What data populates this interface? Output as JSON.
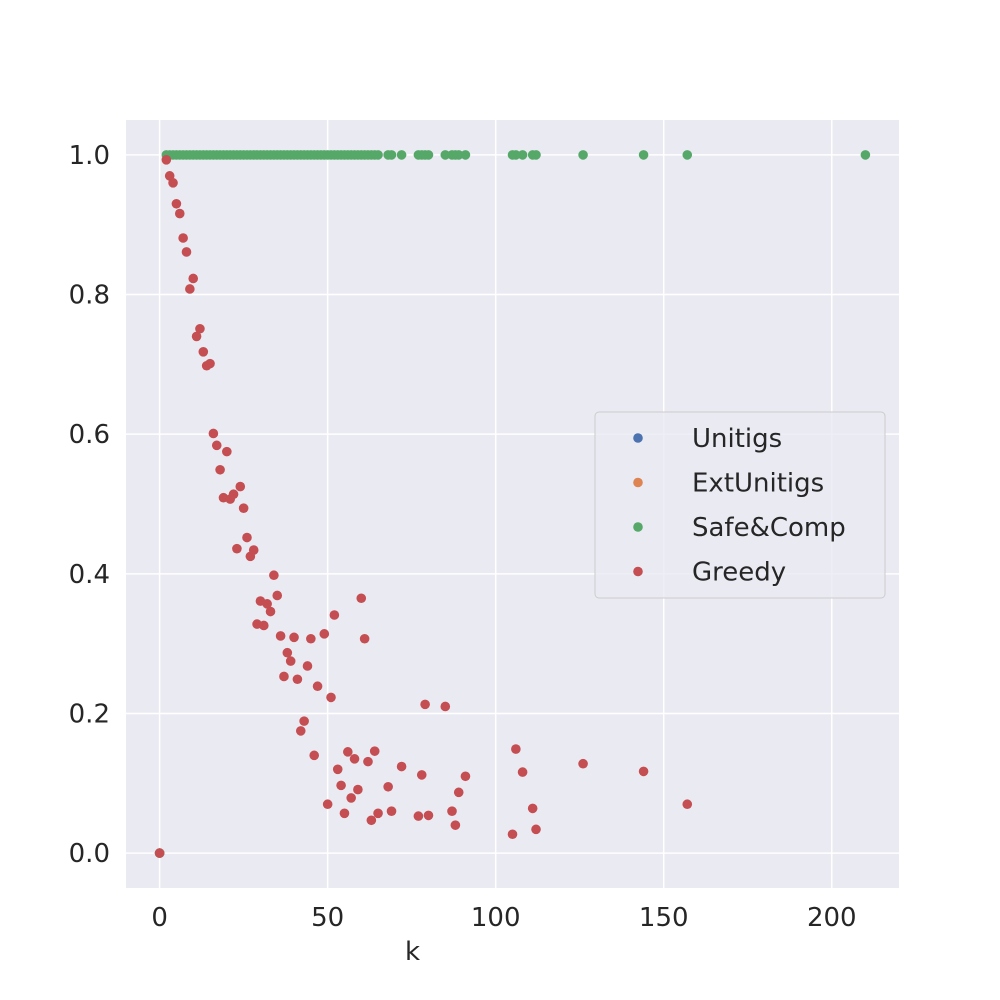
{
  "chart_data": {
    "type": "scatter",
    "xlabel": "k",
    "ylabel": "",
    "xlim": [
      -10,
      220
    ],
    "ylim": [
      -0.05,
      1.05
    ],
    "xticks": [
      0,
      50,
      100,
      150,
      200
    ],
    "xtick_labels": [
      "0",
      "50",
      "100",
      "150",
      "200"
    ],
    "yticks": [
      0.0,
      0.2,
      0.4,
      0.6,
      0.8,
      1.0
    ],
    "ytick_labels": [
      "0.0",
      "0.2",
      "0.4",
      "0.6",
      "0.8",
      "1.0"
    ],
    "grid": true,
    "legend_position": "center-right",
    "colors": {
      "background": "#eaeaf2",
      "grid": "#ffffff",
      "Unitigs": "#4c72b0",
      "ExtUnitigs": "#dd8452",
      "Safe&Comp": "#55a868",
      "Greedy": "#c44e52"
    },
    "series": [
      {
        "name": "Unitigs",
        "points": [
          [
            0,
            0
          ]
        ]
      },
      {
        "name": "ExtUnitigs",
        "points": [
          [
            0,
            0
          ]
        ]
      },
      {
        "name": "Safe&Comp",
        "points": [
          [
            0,
            0
          ],
          [
            2,
            1
          ],
          [
            3,
            1
          ],
          [
            4,
            1
          ],
          [
            5,
            1
          ],
          [
            6,
            1
          ],
          [
            7,
            1
          ],
          [
            8,
            1
          ],
          [
            9,
            1
          ],
          [
            10,
            1
          ],
          [
            11,
            1
          ],
          [
            12,
            1
          ],
          [
            13,
            1
          ],
          [
            14,
            1
          ],
          [
            15,
            1
          ],
          [
            16,
            1
          ],
          [
            17,
            1
          ],
          [
            18,
            1
          ],
          [
            19,
            1
          ],
          [
            20,
            1
          ],
          [
            21,
            1
          ],
          [
            22,
            1
          ],
          [
            23,
            1
          ],
          [
            24,
            1
          ],
          [
            25,
            1
          ],
          [
            26,
            1
          ],
          [
            27,
            1
          ],
          [
            28,
            1
          ],
          [
            29,
            1
          ],
          [
            30,
            1
          ],
          [
            31,
            1
          ],
          [
            32,
            1
          ],
          [
            33,
            1
          ],
          [
            34,
            1
          ],
          [
            35,
            1
          ],
          [
            36,
            1
          ],
          [
            37,
            1
          ],
          [
            38,
            1
          ],
          [
            39,
            1
          ],
          [
            40,
            1
          ],
          [
            41,
            1
          ],
          [
            42,
            1
          ],
          [
            43,
            1
          ],
          [
            44,
            1
          ],
          [
            45,
            1
          ],
          [
            46,
            1
          ],
          [
            47,
            1
          ],
          [
            48,
            1
          ],
          [
            49,
            1
          ],
          [
            50,
            1
          ],
          [
            51,
            1
          ],
          [
            52,
            1
          ],
          [
            53,
            1
          ],
          [
            54,
            1
          ],
          [
            55,
            1
          ],
          [
            56,
            1
          ],
          [
            57,
            1
          ],
          [
            58,
            1
          ],
          [
            59,
            1
          ],
          [
            60,
            1
          ],
          [
            61,
            1
          ],
          [
            62,
            1
          ],
          [
            63,
            1
          ],
          [
            64,
            1
          ],
          [
            65,
            1
          ],
          [
            68,
            1
          ],
          [
            69,
            1
          ],
          [
            72,
            1
          ],
          [
            77,
            1
          ],
          [
            78,
            1
          ],
          [
            79,
            1
          ],
          [
            80,
            1
          ],
          [
            85,
            1
          ],
          [
            87,
            1
          ],
          [
            88,
            1
          ],
          [
            89,
            1
          ],
          [
            91,
            1
          ],
          [
            105,
            1
          ],
          [
            106,
            1
          ],
          [
            108,
            1
          ],
          [
            111,
            1
          ],
          [
            112,
            1
          ],
          [
            126,
            1
          ],
          [
            144,
            1
          ],
          [
            157,
            1
          ],
          [
            210,
            1
          ]
        ]
      },
      {
        "name": "Greedy",
        "points": [
          [
            0,
            0.0
          ],
          [
            2,
            0.993
          ],
          [
            3,
            0.97
          ],
          [
            4,
            0.96
          ],
          [
            5,
            0.93
          ],
          [
            6,
            0.916
          ],
          [
            7,
            0.881
          ],
          [
            8,
            0.861
          ],
          [
            9,
            0.808
          ],
          [
            10,
            0.823
          ],
          [
            11,
            0.74
          ],
          [
            12,
            0.751
          ],
          [
            13,
            0.718
          ],
          [
            14,
            0.698
          ],
          [
            15,
            0.701
          ],
          [
            16,
            0.601
          ],
          [
            17,
            0.584
          ],
          [
            18,
            0.549
          ],
          [
            19,
            0.509
          ],
          [
            20,
            0.575
          ],
          [
            21,
            0.507
          ],
          [
            22,
            0.514
          ],
          [
            23,
            0.436
          ],
          [
            24,
            0.525
          ],
          [
            25,
            0.494
          ],
          [
            26,
            0.452
          ],
          [
            27,
            0.425
          ],
          [
            28,
            0.434
          ],
          [
            29,
            0.328
          ],
          [
            30,
            0.361
          ],
          [
            31,
            0.326
          ],
          [
            32,
            0.357
          ],
          [
            33,
            0.346
          ],
          [
            34,
            0.398
          ],
          [
            35,
            0.369
          ],
          [
            36,
            0.311
          ],
          [
            37,
            0.253
          ],
          [
            38,
            0.287
          ],
          [
            39,
            0.275
          ],
          [
            40,
            0.309
          ],
          [
            41,
            0.249
          ],
          [
            42,
            0.175
          ],
          [
            43,
            0.189
          ],
          [
            44,
            0.268
          ],
          [
            45,
            0.307
          ],
          [
            46,
            0.14
          ],
          [
            47,
            0.239
          ],
          [
            49,
            0.314
          ],
          [
            50,
            0.07
          ],
          [
            51,
            0.223
          ],
          [
            52,
            0.341
          ],
          [
            53,
            0.12
          ],
          [
            54,
            0.097
          ],
          [
            55,
            0.057
          ],
          [
            56,
            0.145
          ],
          [
            57,
            0.079
          ],
          [
            58,
            0.135
          ],
          [
            59,
            0.091
          ],
          [
            60,
            0.365
          ],
          [
            61,
            0.307
          ],
          [
            62,
            0.131
          ],
          [
            63,
            0.047
          ],
          [
            64,
            0.146
          ],
          [
            65,
            0.057
          ],
          [
            68,
            0.095
          ],
          [
            69,
            0.06
          ],
          [
            72,
            0.124
          ],
          [
            77,
            0.053
          ],
          [
            78,
            0.112
          ],
          [
            79,
            0.213
          ],
          [
            80,
            0.054
          ],
          [
            85,
            0.21
          ],
          [
            87,
            0.06
          ],
          [
            88,
            0.04
          ],
          [
            89,
            0.087
          ],
          [
            91,
            0.11
          ],
          [
            105,
            0.027
          ],
          [
            106,
            0.149
          ],
          [
            108,
            0.116
          ],
          [
            111,
            0.064
          ],
          [
            112,
            0.034
          ],
          [
            126,
            0.128
          ],
          [
            144,
            0.117
          ],
          [
            157,
            0.07
          ]
        ]
      }
    ]
  }
}
